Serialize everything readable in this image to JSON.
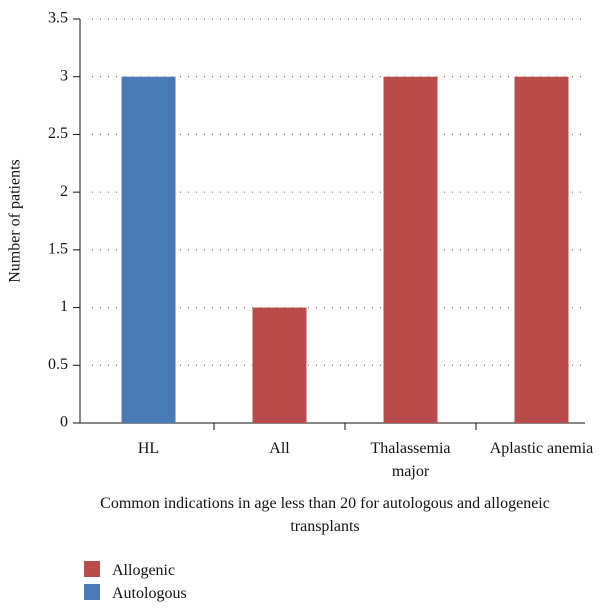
{
  "chart_data": {
    "type": "bar",
    "stacked": true,
    "categories": [
      "HL",
      "All",
      "Thalassemia major",
      "Aplastic anemia"
    ],
    "series": [
      {
        "name": "Allogenic",
        "color": "#b94c4b",
        "values": [
          0,
          1,
          3,
          3
        ]
      },
      {
        "name": "Autologous",
        "color": "#4a7ab5",
        "values": [
          3,
          0,
          0,
          0
        ]
      }
    ],
    "xlabel": "Common indications in age less than 20 for autologous and allogeneic transplants",
    "ylabel": "Number of patients",
    "ylim": [
      0,
      3.5
    ],
    "yticks": [
      0,
      0.5,
      1,
      1.5,
      2,
      2.5,
      3,
      3.5
    ],
    "grid": true,
    "legend": "bottom-left"
  }
}
